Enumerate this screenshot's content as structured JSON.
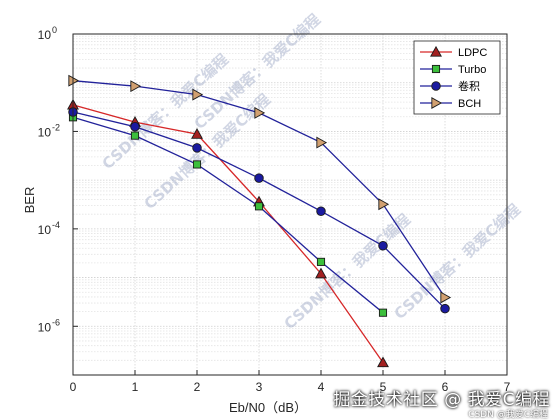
{
  "chart_data": {
    "type": "line",
    "xlabel": "Eb/N0（dB）",
    "ylabel": "BER",
    "xlim": [
      0,
      7
    ],
    "ylim_log10": [
      -7,
      0
    ],
    "yscale": "log",
    "grid": true,
    "legend_position": "top-right",
    "x_ticks": [
      "0",
      "1",
      "2",
      "3",
      "4",
      "5",
      "6",
      "7"
    ],
    "y_ticks": [
      {
        "base": "10",
        "exp": "0",
        "value": 0
      },
      {
        "base": "10",
        "exp": "-2",
        "value": -2
      },
      {
        "base": "10",
        "exp": "-4",
        "value": -4
      },
      {
        "base": "10",
        "exp": "-6",
        "value": -6
      }
    ],
    "series": [
      {
        "name": "LDPC",
        "color": "#d62728",
        "marker": "triangle-up",
        "x": [
          0,
          1,
          2,
          3,
          4,
          5
        ],
        "y": [
          0.035,
          0.0155,
          0.0088,
          0.00036,
          1.2e-05,
          1.8e-07
        ]
      },
      {
        "name": "Turbo",
        "color": "#22229a",
        "marker": "square",
        "x": [
          0,
          1,
          2,
          3,
          4,
          5
        ],
        "y": [
          0.0195,
          0.0082,
          0.0021,
          0.00029,
          2.1e-05,
          1.9e-06
        ]
      },
      {
        "name": "卷积",
        "color": "#22229a",
        "marker": "circle",
        "x": [
          0,
          1,
          2,
          3,
          4,
          5,
          6
        ],
        "y": [
          0.025,
          0.0125,
          0.0046,
          0.0011,
          0.00023,
          4.5e-05,
          2.3e-06
        ]
      },
      {
        "name": "BCH",
        "color": "#22229a",
        "marker": "triangle-right",
        "x": [
          0,
          1,
          2,
          3,
          4,
          5,
          6
        ],
        "y": [
          0.11,
          0.085,
          0.057,
          0.024,
          0.0059,
          0.00032,
          3.9e-06
        ]
      }
    ]
  },
  "watermarks": {
    "diagonal": "CSDN博客：我爱C编程",
    "bottom_main": "掘金技术社区 @ 我爱C编程",
    "bottom_sub": "CSDN @我爱C编程"
  }
}
